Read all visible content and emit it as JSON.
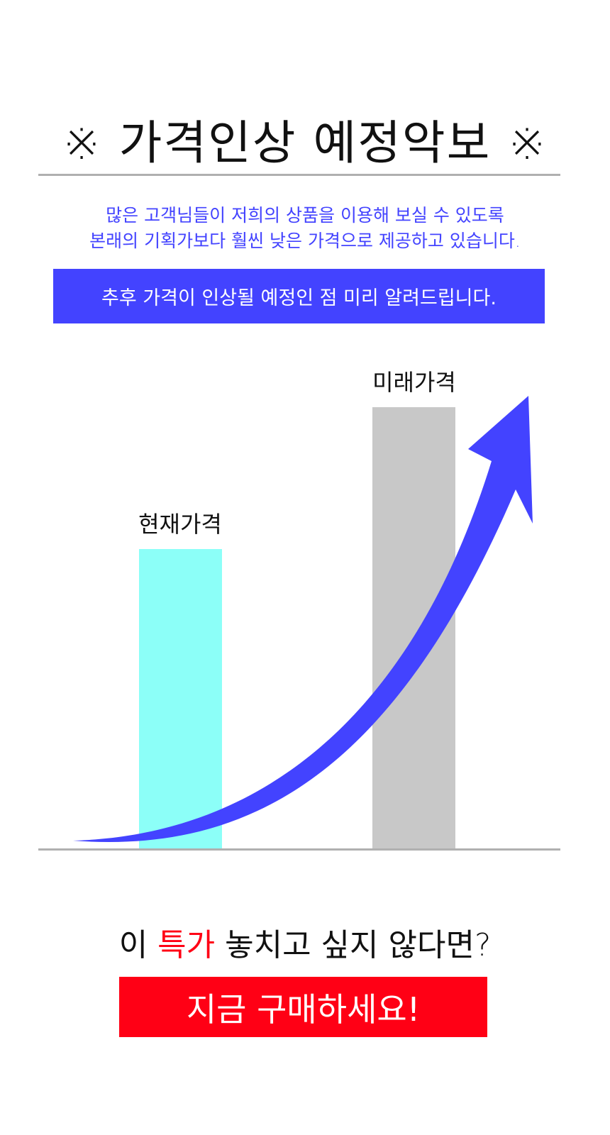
{
  "header": {
    "title": "※ 가격인상 예정악보 ※"
  },
  "intro": {
    "line1": "많은 고객님들이 저희의 상품을 이용해 보실 수 있도록",
    "line2": "본래의 기획가보다 훨씬 낮은 가격으로 제공하고 있습니다.",
    "notice": "추후 가격이 인상될 예정인 점 미리 알려드립니다."
  },
  "comparison": {
    "current_label": "현재가격",
    "future_label": "미래가격",
    "colors": {
      "current_bar": "#8cfff8",
      "future_bar": "#c8c8c8",
      "arrow": "#4343ff"
    },
    "arrow_icon": "rising-arrow"
  },
  "cta": {
    "question_prefix": "이 ",
    "question_highlight": "특가",
    "question_suffix": " 놓치고 싶지 않다면?",
    "button_label": "지금 구매하세요!",
    "highlight_color": "#ff0015",
    "button_color": "#ff0015"
  }
}
